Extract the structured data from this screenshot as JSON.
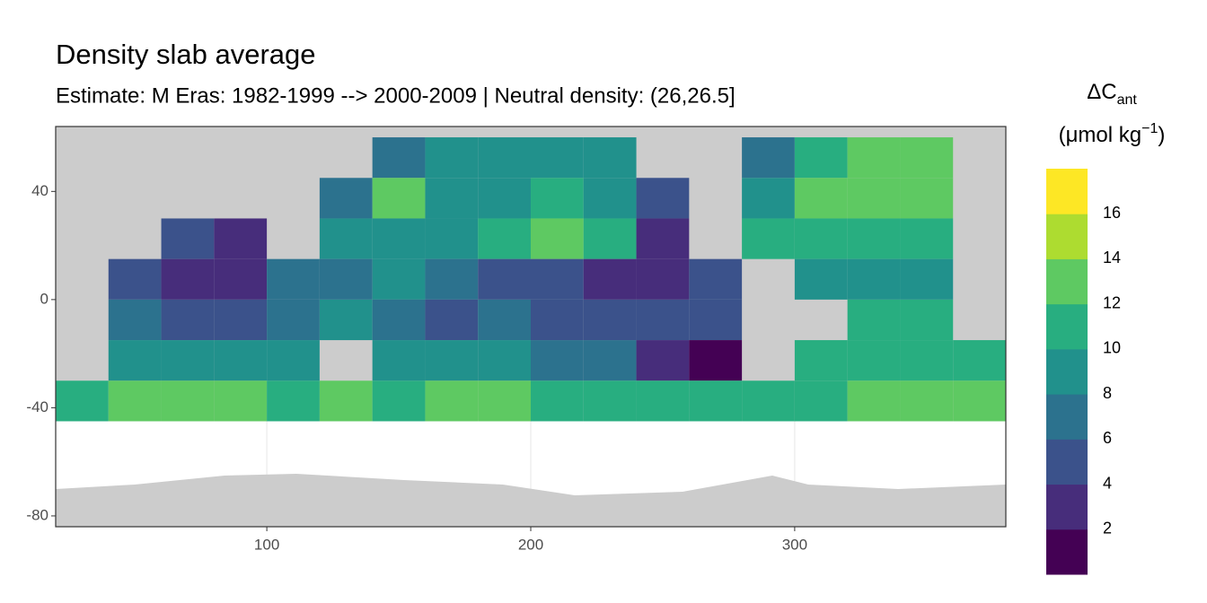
{
  "chart_data": {
    "type": "raster",
    "title": "Density slab average",
    "subtitle": "Estimate: M Eras: 1982-1999 --> 2000-2009 | Neutral density: (26,26.5]",
    "xlim": [
      20,
      380
    ],
    "ylim": [
      -84,
      64
    ],
    "xticks": [
      100,
      200,
      300
    ],
    "yticks": [
      -80,
      -40,
      0,
      40
    ],
    "grid": true,
    "lon_edges": [
      20,
      40,
      60,
      80,
      100,
      120,
      140,
      160,
      180,
      200,
      220,
      240,
      260,
      280,
      300,
      320,
      340,
      360,
      380
    ],
    "lat_edges": [
      60,
      45,
      30,
      15,
      0,
      -15,
      -30,
      -45
    ],
    "values": [
      [
        null,
        null,
        null,
        null,
        null,
        null,
        7,
        8,
        8,
        8,
        9,
        null,
        null,
        7,
        11,
        13,
        12,
        null
      ],
      [
        null,
        null,
        null,
        null,
        null,
        6,
        12,
        9,
        9,
        10,
        8,
        4,
        null,
        9,
        12,
        13,
        13,
        null
      ],
      [
        null,
        null,
        4,
        3,
        null,
        8,
        9,
        9,
        10,
        12,
        11,
        3,
        null,
        10,
        11,
        11,
        10,
        null
      ],
      [
        null,
        5,
        3,
        2,
        7,
        7,
        8,
        6,
        5,
        4,
        3,
        2,
        4,
        null,
        9,
        9,
        9,
        null
      ],
      [
        null,
        6,
        5,
        5,
        7,
        8,
        6,
        5,
        6,
        5,
        4,
        4,
        5,
        null,
        null,
        10,
        10,
        null
      ],
      [
        null,
        9,
        9,
        9,
        9,
        null,
        9,
        8,
        8,
        7,
        6,
        3,
        1,
        null,
        11,
        11,
        11,
        11
      ],
      [
        11,
        12,
        12,
        12,
        11,
        12,
        11,
        12,
        12,
        11,
        10,
        10,
        11,
        10,
        11,
        12,
        12,
        12
      ]
    ],
    "legend": {
      "title": "ΔC",
      "title_sub": "ant",
      "unit": "(μmol kg",
      "unit_sup": "−1",
      "unit_end": ")",
      "limits": [
        0,
        18
      ],
      "breaks": [
        2,
        4,
        6,
        8,
        10,
        12,
        14,
        16
      ],
      "colors": [
        "#440154",
        "#472d7b",
        "#3b528b",
        "#2c728e",
        "#21918c",
        "#28ae80",
        "#5ec962",
        "#addc30",
        "#fde725"
      ]
    }
  }
}
